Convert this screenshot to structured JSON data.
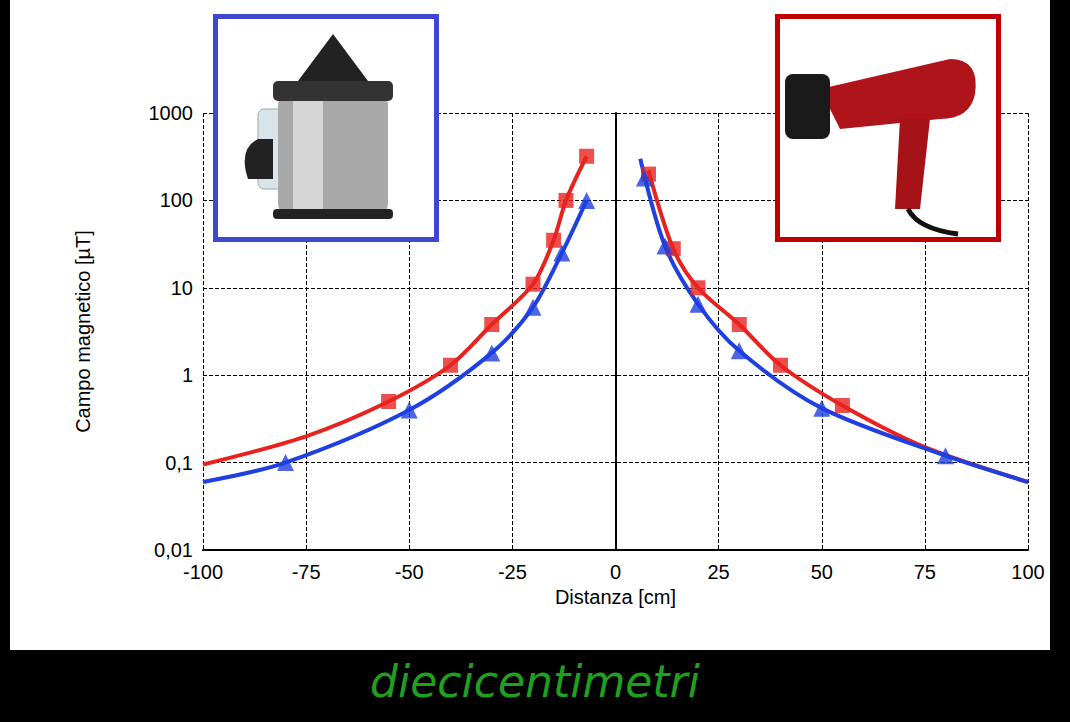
{
  "chart_data": {
    "type": "line",
    "x_label": "Distanza [cm]",
    "y_label": "Campo magnetico [µT]",
    "caption": "diecicentimetri",
    "xlim": [
      -100,
      100
    ],
    "xticks": [
      -100,
      -75,
      -50,
      -25,
      0,
      25,
      50,
      75,
      100
    ],
    "ylim": [
      0.01,
      1000
    ],
    "yticks": [
      {
        "value": 0.01,
        "label": "0,01"
      },
      {
        "value": 0.1,
        "label": "0,1"
      },
      1,
      10,
      100,
      1000
    ],
    "log": "y",
    "grid": true,
    "series": [
      {
        "type": "line",
        "color": "#e8231f",
        "marker": "none",
        "line_style": "solid",
        "x": [
          -100,
          -75,
          -55,
          -40,
          -30,
          -20,
          -15,
          -12,
          -7,
          null,
          8,
          14,
          20,
          30,
          40,
          55,
          75,
          100
        ],
        "values": [
          0.095,
          0.2,
          0.5,
          1.3,
          3.8,
          11,
          35,
          100,
          320,
          null,
          220,
          28,
          10,
          3.8,
          1.3,
          0.45,
          0.15,
          0.06
        ]
      },
      {
        "type": "line",
        "color": "#1f3fe0",
        "marker": "none",
        "line_style": "solid",
        "x": [
          -100,
          -80,
          -50,
          -30,
          -20,
          -13,
          -7,
          null,
          6,
          12,
          20,
          30,
          50,
          80,
          100
        ],
        "values": [
          0.06,
          0.1,
          0.4,
          1.8,
          6,
          25,
          100,
          null,
          300,
          30,
          6.5,
          1.9,
          0.42,
          0.12,
          0.06
        ]
      },
      {
        "type": "scatter",
        "color": "#e8231f",
        "marker": "square",
        "x": [
          -55,
          -40,
          -30,
          -20,
          -15,
          -12,
          -7,
          8,
          14,
          20,
          30,
          40,
          55
        ],
        "values": [
          0.5,
          1.3,
          3.8,
          11,
          35,
          100,
          320,
          200,
          28,
          10,
          3.8,
          1.3,
          0.45
        ]
      },
      {
        "type": "scatter",
        "color": "#1f3fe0",
        "marker": "triangle",
        "x": [
          -80,
          -50,
          -30,
          -20,
          -13,
          -7,
          7,
          12,
          20,
          30,
          50,
          80
        ],
        "values": [
          0.1,
          0.4,
          1.8,
          6,
          25,
          100,
          180,
          30,
          6.5,
          1.9,
          0.42,
          0.12
        ]
      }
    ]
  }
}
